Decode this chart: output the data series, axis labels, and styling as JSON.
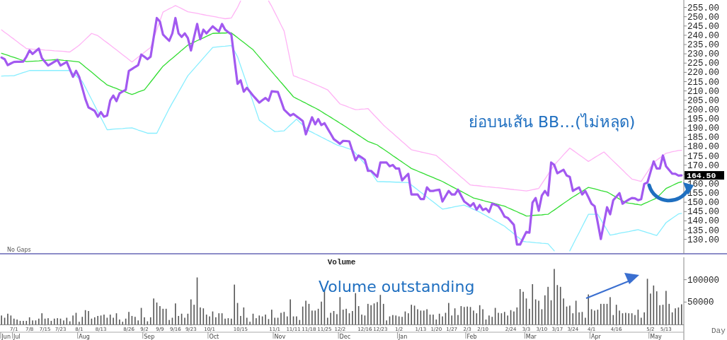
{
  "chart_data": [
    {
      "type": "line",
      "ylim": [
        123,
        259
      ],
      "tick_labels": "y",
      "categories": [
        null,
        null,
        null,
        null,
        null,
        null,
        null,
        null,
        null,
        null,
        null,
        null,
        null,
        null,
        null,
        null,
        null,
        null,
        null,
        null,
        null,
        null,
        null,
        null,
        null,
        null,
        null,
        null,
        null,
        null,
        null,
        null,
        null,
        null,
        null,
        null,
        null,
        null,
        null,
        null,
        null,
        null,
        null,
        null,
        null,
        null,
        null,
        null,
        null,
        null,
        null,
        null,
        null,
        null,
        null,
        null,
        null,
        null,
        null,
        null,
        null,
        null,
        null,
        null,
        null,
        null,
        null,
        null,
        null,
        null,
        null,
        null,
        null,
        null,
        null,
        null,
        null,
        null,
        null,
        null,
        null,
        null,
        null,
        null,
        null,
        null,
        null,
        null,
        null,
        null,
        null,
        null,
        null,
        null,
        null,
        null,
        null,
        null,
        null,
        null,
        null,
        null,
        null,
        null,
        null,
        null,
        null,
        null,
        null,
        null,
        null,
        null,
        null,
        null,
        null,
        null,
        null,
        null,
        null,
        null,
        null,
        null,
        null,
        null,
        null,
        null,
        null,
        null,
        null,
        null,
        null,
        null,
        null,
        null,
        null,
        null,
        null,
        null,
        null,
        null,
        null,
        null,
        null,
        null,
        null,
        null,
        null,
        null,
        null,
        null,
        null,
        null,
        null,
        null,
        null,
        null,
        null,
        null,
        null,
        null,
        null,
        null,
        null,
        null,
        null,
        null,
        null,
        null,
        null,
        null,
        null,
        null,
        null,
        null,
        null,
        null,
        null,
        null,
        null,
        null,
        null,
        null,
        null,
        null,
        null,
        null,
        null,
        null,
        null,
        null,
        null,
        null,
        null,
        null,
        null,
        null,
        null,
        null,
        null,
        null,
        null,
        null,
        null,
        null,
        null,
        null,
        null,
        null,
        null,
        null,
        null,
        null,
        null,
        null,
        null,
        null,
        null,
        null,
        null,
        null
      ],
      "yticks": [
        {
          "value": 130,
          "label": "130.00"
        },
        {
          "value": 135,
          "label": "135.00"
        },
        {
          "value": 140,
          "label": "140.00"
        },
        {
          "value": 145,
          "label": "145.00"
        },
        {
          "value": 150,
          "label": "150.00"
        },
        {
          "value": 155,
          "label": "155.00"
        },
        {
          "value": 160,
          "label": "160.00"
        },
        {
          "value": 165,
          "label": null
        },
        {
          "value": 170,
          "label": "170.00"
        },
        {
          "value": 175,
          "label": "175.00"
        },
        {
          "value": 180,
          "label": "180.00"
        },
        {
          "value": 185,
          "label": "185.00"
        },
        {
          "value": 190,
          "label": "190.00"
        },
        {
          "value": 195,
          "label": "195.00"
        },
        {
          "value": 200,
          "label": "200.00"
        },
        {
          "value": 205,
          "label": "205.00"
        },
        {
          "value": 210,
          "label": "210.00"
        },
        {
          "value": 215,
          "label": "215.00"
        },
        {
          "value": 220,
          "label": "220.00"
        },
        {
          "value": 225,
          "label": "225.00"
        },
        {
          "value": 230,
          "label": "230.00"
        },
        {
          "value": 235,
          "label": "235.00"
        },
        {
          "value": 240,
          "label": "240.00"
        },
        {
          "value": 245,
          "label": "245.00"
        },
        {
          "value": 250,
          "label": "250.00"
        },
        {
          "value": 255,
          "label": "255.00"
        }
      ],
      "series": [
        {
          "color": "#ffb3f5",
          "values": [
            242.9,
            241.6,
            240.4,
            239.1,
            237.9,
            236.6,
            235.3,
            234.1,
            232.8,
            232.7,
            232.5,
            232.4,
            232.3,
            232.2,
            232.0,
            231.9,
            231.8,
            231.6,
            231.5,
            231.4,
            231.3,
            231.1,
            231.0,
            232.2,
            233.4,
            234.6,
            236.2,
            237.8,
            239.4,
            241.0,
            240.4,
            239.8,
            238.5,
            237.2,
            236.0,
            234.7,
            233.4,
            232.1,
            230.8,
            229.5,
            228.2,
            226.9,
            225.6,
            226.9,
            228.2,
            229.5,
            230.8,
            232.1,
            233.4,
            238.2,
            243.0,
            247.7,
            252.5,
            253.4,
            254.3,
            255.1,
            256.0,
            255.2,
            254.4,
            253.5,
            252.7,
            252.4,
            252.1,
            251.8,
            251.4,
            251.1,
            250.8,
            250.5,
            250.2,
            249.9,
            249.5,
            249.2,
            248.9,
            249.1,
            249.3,
            252.2,
            255.0,
            258.5,
            null,
            null,
            null,
            null,
            null,
            null,
            null,
            null,
            258.5,
            255.6,
            252.3,
            249.0,
            245.6,
            242.3,
            234.3,
            226.2,
            218.2,
            217.6,
            216.9,
            216.3,
            215.7,
            215.0,
            214.2,
            213.5,
            212.8,
            212.1,
            211.3,
            210.6,
            208.7,
            206.8,
            204.9,
            203.0,
            202.4,
            201.8,
            201.1,
            200.5,
            199.9,
            200.0,
            200.2,
            200.3,
            200.5,
            198.7,
            196.9,
            195.2,
            193.4,
            191.6,
            190.1,
            188.6,
            187.2,
            185.7,
            184.2,
            182.7,
            181.3,
            179.8,
            178.3,
            177.9,
            177.5,
            177.1,
            176.8,
            176.4,
            176.0,
            175.6,
            175.2,
            173.8,
            172.3,
            170.9,
            169.4,
            168.0,
            166.5,
            165.1,
            163.6,
            162.2,
            160.7,
            159.3,
            159.1,
            159.0,
            158.8,
            158.6,
            158.4,
            158.3,
            158.1,
            157.9,
            157.8,
            157.6,
            157.4,
            157.2,
            157.0,
            156.8,
            156.7,
            156.5,
            156.3,
            156.1,
            156.4,
            156.8,
            157.1,
            157.4,
            160.0,
            162.5,
            165.0,
            167.6,
            170.1,
            171.9,
            173.7,
            175.6,
            177.4,
            179.2,
            178.0,
            176.8,
            175.6,
            174.4,
            173.2,
            172.0,
            173.0,
            174.1,
            175.1,
            176.1,
            177.1,
            175.5,
            173.8,
            172.2,
            170.6,
            169.0,
            167.4,
            165.7,
            164.1,
            162.5,
            162.1,
            161.6,
            161.2,
            163.8,
            166.3,
            168.9,
            171.4,
            172.7,
            173.9,
            175.2,
            176.4,
            176.8,
            177.2,
            177.5,
            177.9,
            178.0
          ]
        },
        {
          "color": "#88eeff",
          "values": [
            218.0,
            218.1,
            218.1,
            218.2,
            218.2,
            218.8,
            219.3,
            219.9,
            220.4,
            221.0,
            221.0,
            221.0,
            221.0,
            221.0,
            221.0,
            221.0,
            221.0,
            221.0,
            221.0,
            221.0,
            221.0,
            221.0,
            221.0,
            219.5,
            218.1,
            216.6,
            215.1,
            211.9,
            208.6,
            205.4,
            202.1,
            198.9,
            195.6,
            192.4,
            189.1,
            189.2,
            189.4,
            189.5,
            189.6,
            189.7,
            189.9,
            190.0,
            190.1,
            189.5,
            188.9,
            188.4,
            187.8,
            187.2,
            187.2,
            187.2,
            187.2,
            190.5,
            193.9,
            197.2,
            200.5,
            203.5,
            206.4,
            209.4,
            212.3,
            215.3,
            218.2,
            220.1,
            222.0,
            223.9,
            225.8,
            227.7,
            229.6,
            231.5,
            233.4,
            233.6,
            233.8,
            234.0,
            234.1,
            234.3,
            234.5,
            231.5,
            228.4,
            223.5,
            218.6,
            213.7,
            208.9,
            204.0,
            199.1,
            194.2,
            193.0,
            191.8,
            190.5,
            189.3,
            188.1,
            188.2,
            188.4,
            188.5,
            190.1,
            191.7,
            193.2,
            194.8,
            193.2,
            191.7,
            190.1,
            188.5,
            187.7,
            186.8,
            186.0,
            185.1,
            184.3,
            183.4,
            182.6,
            181.7,
            180.9,
            180.4,
            179.9,
            179.3,
            178.8,
            178.3,
            176.4,
            174.5,
            172.6,
            170.7,
            168.8,
            166.3,
            163.7,
            161.2,
            161.1,
            161.1,
            161.0,
            161.0,
            160.9,
            160.8,
            160.8,
            160.7,
            160.7,
            160.6,
            159.3,
            158.0,
            156.7,
            155.4,
            154.1,
            152.8,
            151.5,
            150.2,
            148.9,
            147.6,
            146.3,
            146.6,
            146.9,
            147.2,
            147.6,
            147.9,
            148.2,
            148.5,
            147.7,
            147.0,
            146.2,
            145.5,
            144.7,
            143.7,
            142.8,
            141.8,
            140.9,
            139.9,
            139.0,
            138.0,
            137.1,
            135.7,
            134.4,
            133.0,
            131.6,
            130.3,
            128.9,
            128.7,
            128.6,
            128.4,
            128.2,
            128.1,
            127.9,
            127.8,
            127.6,
            125.7,
            123.8,
            null,
            null,
            null,
            null,
            123.8,
            127.1,
            130.4,
            133.6,
            136.9,
            140.2,
            143.5,
            143.5,
            143.5,
            143.5,
            140.7,
            137.9,
            135.1,
            132.3,
            132.6,
            132.9,
            133.3,
            133.6,
            133.9,
            134.2,
            134.6,
            134.9,
            135.2,
            134.7,
            134.2,
            133.6,
            133.1,
            132.6,
            132.1,
            134.4,
            136.7,
            139.0,
            140.2,
            141.4,
            142.5,
            143.7,
            144.0
          ]
        },
        {
          "color": "#33dd33",
          "values": [
            230.3,
            229.7,
            229.2,
            228.6,
            228.1,
            227.5,
            226.9,
            226.4,
            225.8,
            225.9,
            226.0,
            226.1,
            226.2,
            226.4,
            226.5,
            226.6,
            226.7,
            226.8,
            226.9,
            226.7,
            226.5,
            226.4,
            226.2,
            226.0,
            225.8,
            225.6,
            224.2,
            222.8,
            221.5,
            220.1,
            218.7,
            217.3,
            215.9,
            214.6,
            213.2,
            212.6,
            211.9,
            211.3,
            210.6,
            210.0,
            209.4,
            208.7,
            208.1,
            208.7,
            209.4,
            210.0,
            210.6,
            212.7,
            214.8,
            216.9,
            219.1,
            221.2,
            223.3,
            224.7,
            226.2,
            227.6,
            229.0,
            230.4,
            231.9,
            233.3,
            234.7,
            235.5,
            236.3,
            237.1,
            237.9,
            238.6,
            239.4,
            240.2,
            241.0,
            241.1,
            241.1,
            241.2,
            241.2,
            241.3,
            241.3,
            240.0,
            238.7,
            237.4,
            236.1,
            234.8,
            233.5,
            232.2,
            230.2,
            228.3,
            226.3,
            224.4,
            222.4,
            220.5,
            218.5,
            216.6,
            214.6,
            212.7,
            210.7,
            208.8,
            206.8,
            205.9,
            205.1,
            204.2,
            203.4,
            202.5,
            201.6,
            200.8,
            199.9,
            198.9,
            197.8,
            196.8,
            195.8,
            194.7,
            193.7,
            192.6,
            191.6,
            190.5,
            189.4,
            188.3,
            187.2,
            186.1,
            185.0,
            183.9,
            182.8,
            182.2,
            181.5,
            180.9,
            179.7,
            178.6,
            177.5,
            176.3,
            175.1,
            174.0,
            172.8,
            171.7,
            170.5,
            169.4,
            168.2,
            167.5,
            166.8,
            166.1,
            165.4,
            164.7,
            164.0,
            163.3,
            162.6,
            161.9,
            161.2,
            160.3,
            159.4,
            158.5,
            157.6,
            156.7,
            155.9,
            155.0,
            154.1,
            153.2,
            152.3,
            151.9,
            151.4,
            151.0,
            150.5,
            150.1,
            149.7,
            149.2,
            148.8,
            148.3,
            147.9,
            147.1,
            146.4,
            145.6,
            144.9,
            144.1,
            143.4,
            142.6,
            142.7,
            142.9,
            143.0,
            143.1,
            143.2,
            143.4,
            143.5,
            144.7,
            145.8,
            147.0,
            148.2,
            149.4,
            150.5,
            151.7,
            152.8,
            153.8,
            154.9,
            155.9,
            157.0,
            158.0,
            157.6,
            157.2,
            156.8,
            156.3,
            155.9,
            155.5,
            154.6,
            153.6,
            152.7,
            151.7,
            150.8,
            149.8,
            149.5,
            149.3,
            149.0,
            148.8,
            148.5,
            149.3,
            150.0,
            150.8,
            151.5,
            152.3,
            154.0,
            155.7,
            157.4,
            158.2,
            159.0,
            159.8,
            160.6,
            161.0
          ]
        },
        {
          "color": "#a259f0",
          "values": [
            228.0,
            227.1,
            223.9,
            224.8,
            225.6,
            225.7,
            225.7,
            225.8,
            228.4,
            231.8,
            229.9,
            231.4,
            232.8,
            227.7,
            225.7,
            223.7,
            224.7,
            225.7,
            226.7,
            223.7,
            224.7,
            225.6,
            221.6,
            217.6,
            220.8,
            217.6,
            211.6,
            205.6,
            201.1,
            200.2,
            199.2,
            196.1,
            198.6,
            196.1,
            196.7,
            204.9,
            207.5,
            204.5,
            208.7,
            209.7,
            210.6,
            220.8,
            221.8,
            222.9,
            223.9,
            229.6,
            228.4,
            227.1,
            228.4,
            238.9,
            249.3,
            247.4,
            240.4,
            238.7,
            237.0,
            241.0,
            249.3,
            241.0,
            239.1,
            241.0,
            238.5,
            231.8,
            239.0,
            246.1,
            237.9,
            243.0,
            241.0,
            242.9,
            244.8,
            243.4,
            242.0,
            246.1,
            243.0,
            241.7,
            240.4,
            227.1,
            213.8,
            215.7,
            209.6,
            211.7,
            209.6,
            207.5,
            205.6,
            203.7,
            205.0,
            206.2,
            204.7,
            209.8,
            209.6,
            209.4,
            204.7,
            199.9,
            198.3,
            196.7,
            197.6,
            196.3,
            195.1,
            193.8,
            186.6,
            191.2,
            195.8,
            192.0,
            194.8,
            191.6,
            192.6,
            189.7,
            186.9,
            184.0,
            182.8,
            181.5,
            183.1,
            183.0,
            182.8,
            177.7,
            172.6,
            175.2,
            174.1,
            172.9,
            166.9,
            166.9,
            165.3,
            163.7,
            171.4,
            171.4,
            171.4,
            169.4,
            170.1,
            168.2,
            168.2,
            161.8,
            163.6,
            165.3,
            154.2,
            154.2,
            154.2,
            151.7,
            151.7,
            158.0,
            156.1,
            156.1,
            156.5,
            156.8,
            150.4,
            153.3,
            156.1,
            154.2,
            154.2,
            156.8,
            153.6,
            150.4,
            149.2,
            147.9,
            149.5,
            146.0,
            148.5,
            145.8,
            146.6,
            144.7,
            149.2,
            148.6,
            147.9,
            145.4,
            142.2,
            141.6,
            139.7,
            137.8,
            127.2,
            127.2,
            130.6,
            134.0,
            133.6,
            149.8,
            152.3,
            145.4,
            153.6,
            156.1,
            153.6,
            171.4,
            170.1,
            165.6,
            166.6,
            167.5,
            164.4,
            163.7,
            156.1,
            157.1,
            158.0,
            154.2,
            156.1,
            152.7,
            149.2,
            147.9,
            139.1,
            130.2,
            138.8,
            147.3,
            143.5,
            151.1,
            153.0,
            154.9,
            149.2,
            150.4,
            151.4,
            152.3,
            152.1,
            151.1,
            151.7,
            159.9,
            160.6,
            166.3,
            172.0,
            168.2,
            168.2,
            175.2,
            169.4,
            167.4,
            165.4,
            165.3,
            164.4,
            164.5
          ],
          "value_labels": [
            null,
            null,
            null,
            null,
            null,
            null,
            null,
            null,
            null,
            null,
            null,
            null,
            null,
            null,
            null,
            null,
            null,
            null,
            null,
            null,
            null,
            null,
            null,
            null,
            null,
            null,
            null,
            null,
            null,
            null,
            null,
            null,
            null,
            null,
            null,
            null,
            null,
            null,
            null,
            null,
            null,
            null,
            null,
            null,
            null,
            null,
            null,
            null,
            null,
            null,
            null,
            null,
            null,
            null,
            null,
            null,
            null,
            null,
            null,
            null,
            null,
            null,
            null,
            null,
            null,
            null,
            null,
            null,
            null,
            null,
            null,
            null,
            null,
            null,
            null,
            null,
            null,
            null,
            null,
            null,
            null,
            null,
            null,
            null,
            null,
            null,
            null,
            null,
            null,
            null,
            null,
            null,
            null,
            null,
            null,
            null,
            null,
            null,
            null,
            null,
            null,
            null,
            null,
            null,
            null,
            null,
            null,
            null,
            null,
            null,
            null,
            null,
            null,
            null,
            null,
            null,
            null,
            null,
            null,
            null,
            null,
            null,
            null,
            null,
            null,
            null,
            null,
            null,
            null,
            null,
            null,
            null,
            null,
            null,
            null,
            null,
            null,
            null,
            null,
            null,
            null,
            null,
            null,
            null,
            null,
            null,
            null,
            null,
            null,
            null,
            null,
            null,
            null,
            null,
            null,
            null,
            null,
            null,
            null,
            null,
            null,
            null,
            null,
            null,
            null,
            null,
            null,
            null,
            null,
            null,
            null,
            null,
            null,
            null,
            null,
            null,
            null,
            null,
            null,
            null,
            null,
            null,
            null,
            null,
            null,
            null,
            null,
            null,
            null,
            null,
            null,
            null,
            null,
            null,
            null,
            null,
            null,
            null,
            null,
            null,
            null,
            null,
            null,
            null,
            null,
            null,
            null,
            null,
            null,
            null,
            null,
            null,
            null,
            null,
            null,
            null,
            null,
            null,
            null,
            "164.50"
          ]
        }
      ],
      "annotations": [
        "No Gaps",
        "ย่อบนเส้น BB…(ไม่หลุด)"
      ]
    },
    {
      "type": "bar",
      "title": "Volume",
      "xlabel": "Day",
      "color": "#555555",
      "ylim": [
        0,
        150000
      ],
      "yticks": [
        50000,
        100000
      ],
      "categories": [
        null,
        null,
        null,
        null,
        "7/1",
        null,
        null,
        null,
        null,
        "7/8",
        null,
        null,
        null,
        null,
        "7/15",
        null,
        null,
        null,
        null,
        "7/23",
        null,
        null,
        null,
        null,
        null,
        "8/1",
        null,
        null,
        null,
        null,
        null,
        null,
        "8/13",
        null,
        null,
        null,
        null,
        null,
        null,
        null,
        null,
        "8/26",
        null,
        null,
        null,
        null,
        "9/2",
        null,
        null,
        null,
        null,
        "9/9",
        null,
        null,
        null,
        null,
        "9/16",
        null,
        null,
        null,
        null,
        "9/23",
        null,
        null,
        null,
        null,
        null,
        "10/1",
        null,
        null,
        null,
        null,
        null,
        null,
        null,
        null,
        null,
        "10/15",
        null,
        null,
        null,
        null,
        null,
        null,
        null,
        null,
        null,
        null,
        "11/1",
        null,
        null,
        null,
        null,
        null,
        "11/11",
        null,
        null,
        null,
        null,
        "11/18",
        null,
        null,
        null,
        null,
        "11/25",
        null,
        null,
        null,
        null,
        "12/2",
        null,
        null,
        null,
        null,
        null,
        null,
        null,
        "12/16",
        null,
        null,
        null,
        null,
        "12/23",
        null,
        null,
        null,
        null,
        null,
        "1/2",
        null,
        null,
        null,
        null,
        null,
        null,
        "1/13",
        null,
        null,
        null,
        null,
        "1/20",
        null,
        null,
        null,
        null,
        "1/27",
        null,
        null,
        null,
        null,
        "2/3",
        null,
        null,
        null,
        null,
        "2/10",
        null,
        null,
        null,
        null,
        null,
        null,
        null,
        null,
        "2/24",
        null,
        null,
        null,
        null,
        "3/3",
        null,
        null,
        null,
        null,
        "3/10",
        null,
        null,
        null,
        null,
        "3/17",
        null,
        null,
        null,
        null,
        "3/24",
        null,
        null,
        null,
        null,
        null,
        "4/1",
        null,
        null,
        null,
        null,
        null,
        null,
        null,
        "4/16",
        null,
        null,
        null,
        null,
        null,
        null,
        null,
        null,
        null,
        null,
        "5/2",
        null,
        null,
        null,
        null,
        "5/13",
        null,
        null,
        null,
        null,
        null
      ],
      "values": [
        20000,
        15000,
        24000,
        20000,
        13000,
        11000,
        8000,
        8000,
        8000,
        16000,
        9000,
        9000,
        13000,
        25000,
        13000,
        14000,
        8000,
        13000,
        14000,
        13000,
        9000,
        15000,
        7000,
        20000,
        26000,
        6000,
        17000,
        32000,
        30000,
        13000,
        16000,
        19000,
        20000,
        22000,
        15000,
        22000,
        15000,
        25000,
        11000,
        6000,
        13000,
        28000,
        19000,
        17000,
        9000,
        37000,
        16000,
        7000,
        16000,
        58000,
        49000,
        41000,
        35000,
        35000,
        10000,
        15000,
        47000,
        19000,
        24000,
        15000,
        24000,
        56000,
        44000,
        105000,
        38000,
        36000,
        22000,
        18000,
        29000,
        16000,
        25000,
        25000,
        13000,
        14000,
        13000,
        89000,
        48000,
        19000,
        38000,
        15000,
        6000,
        24000,
        14000,
        20000,
        18000,
        22000,
        12000,
        33000,
        15000,
        15000,
        26000,
        28000,
        18000,
        56000,
        18000,
        18000,
        10000,
        40000,
        53000,
        46000,
        31000,
        31000,
        35000,
        51000,
        75000,
        15000,
        26000,
        30000,
        23000,
        61000,
        33000,
        35000,
        25000,
        30000,
        70000,
        41000,
        22000,
        20000,
        46000,
        43000,
        47000,
        50000,
        66000,
        46000,
        9000,
        18000,
        21000,
        20000,
        18000,
        17000,
        29000,
        25000,
        44000,
        42000,
        34000,
        31000,
        31000,
        34000,
        22000,
        22000,
        11000,
        24000,
        18000,
        26000,
        48000,
        20000,
        36000,
        21000,
        41000,
        39000,
        40000,
        39000,
        31000,
        25000,
        43000,
        34000,
        11000,
        20000,
        17000,
        37000,
        26000,
        25000,
        28000,
        20000,
        32000,
        29000,
        38000,
        79000,
        73000,
        58000,
        35000,
        90000,
        56000,
        53000,
        34000,
        65000,
        84000,
        54000,
        124000,
        88000,
        84000,
        58000,
        40000,
        42000,
        25000,
        53000,
        27000,
        28000,
        15000,
        67000,
        34000,
        31000,
        33000,
        46000,
        46000,
        46000,
        61000,
        21000,
        44000,
        31000,
        25000,
        26000,
        25000,
        25000,
        21000,
        33000,
        15000,
        27000,
        102000,
        69000,
        87000,
        74000,
        43000,
        44000,
        75000,
        46000,
        27000,
        36000,
        38000,
        45000
      ],
      "annotations": [
        "Volume outstanding",
        "Jun",
        "Jul",
        "Aug",
        "Sep",
        "Oct",
        "Nov",
        "Dec",
        "Jan",
        "Feb",
        "Mar",
        "Apr",
        "May"
      ]
    }
  ]
}
